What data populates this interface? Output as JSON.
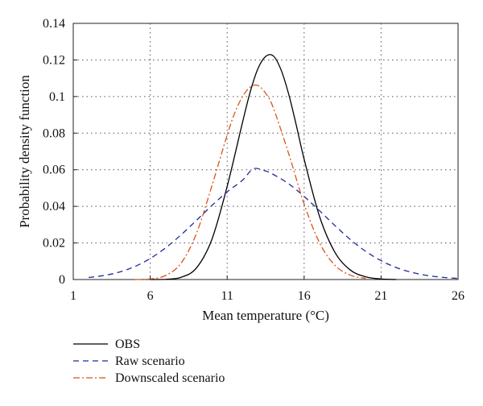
{
  "chart_data": {
    "type": "line",
    "xlabel": "Mean temperature (°C)",
    "ylabel": "Probability density function",
    "xlim": [
      1,
      26
    ],
    "ylim": [
      0,
      0.14
    ],
    "x_ticks": [
      1,
      6,
      11,
      16,
      21,
      26
    ],
    "y_ticks": [
      0,
      0.02,
      0.04,
      0.06,
      0.08,
      0.1,
      0.12,
      0.14
    ],
    "x_tick_labels": [
      "1",
      "6",
      "11",
      "16",
      "21",
      "26"
    ],
    "y_tick_labels": [
      "0",
      "0.02",
      "0.04",
      "0.06",
      "0.08",
      "0.1",
      "0.12",
      "0.14"
    ],
    "grid": "dotted",
    "legend_position": "below",
    "series": [
      {
        "name": "OBS",
        "color": "#000000",
        "dash": "solid",
        "x": [
          6,
          7,
          8,
          9,
          10,
          11,
          12,
          12.5,
          13,
          13.5,
          14,
          14.5,
          15,
          15.5,
          16,
          17,
          18,
          19,
          20,
          21,
          22
        ],
        "y": [
          0,
          0.0001,
          0.0012,
          0.0063,
          0.0218,
          0.0509,
          0.086,
          0.1026,
          0.1153,
          0.1219,
          0.1222,
          0.1146,
          0.1012,
          0.084,
          0.0658,
          0.0345,
          0.0149,
          0.0052,
          0.0015,
          0.0003,
          0
        ]
      },
      {
        "name": "Raw scenario",
        "color": "#1f2a9e",
        "dash": "dashed",
        "x": [
          2,
          3,
          4,
          5,
          6,
          7,
          8,
          9,
          10,
          11,
          12,
          12.7,
          13.5,
          14,
          15,
          16,
          17,
          18,
          19,
          20,
          21,
          22,
          23,
          24,
          25,
          26
        ],
        "y": [
          0.0011,
          0.0022,
          0.0041,
          0.0071,
          0.0115,
          0.0173,
          0.0244,
          0.0323,
          0.0404,
          0.0479,
          0.0543,
          0.0605,
          0.0593,
          0.0574,
          0.0523,
          0.0454,
          0.0376,
          0.0295,
          0.0219,
          0.0154,
          0.0103,
          0.0065,
          0.0039,
          0.0022,
          0.0012,
          0.0006
        ]
      },
      {
        "name": "Downscaled scenario",
        "color": "#d9541a",
        "dash": "dashdot",
        "x": [
          5,
          6,
          7,
          8,
          9,
          10,
          11,
          11.5,
          12,
          12.5,
          13,
          13.5,
          14,
          15,
          16,
          17,
          18,
          19,
          20
        ],
        "y": [
          0,
          0.0003,
          0.0022,
          0.0089,
          0.0251,
          0.051,
          0.079,
          0.0912,
          0.1,
          0.1052,
          0.106,
          0.1018,
          0.0938,
          0.0687,
          0.0413,
          0.0201,
          0.0078,
          0.0024,
          0.0006
        ]
      }
    ]
  }
}
